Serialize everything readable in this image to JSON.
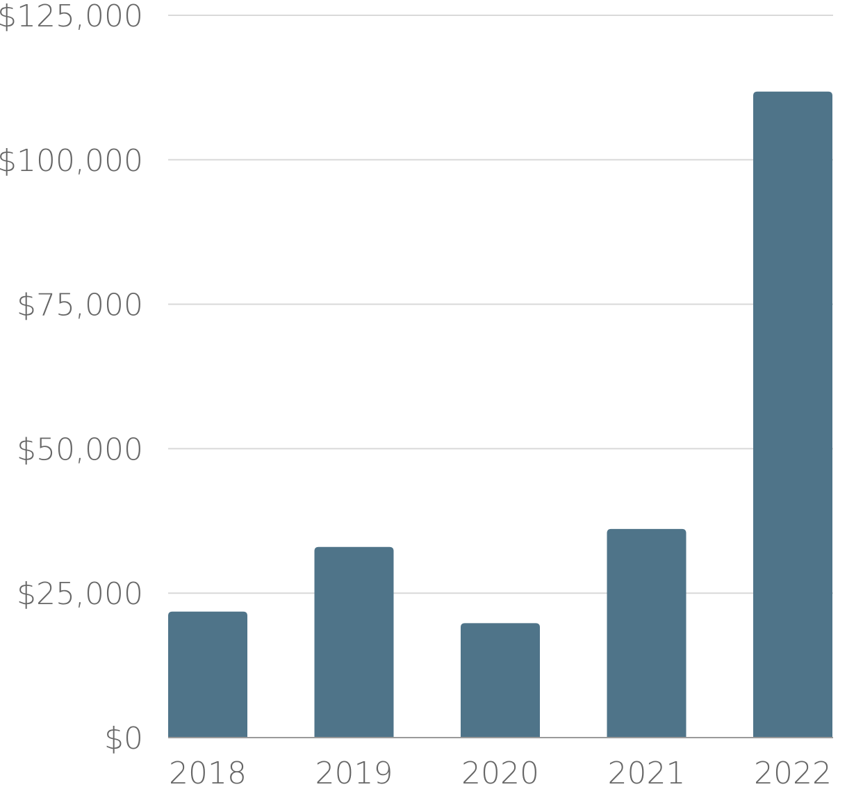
{
  "chart_data": {
    "type": "bar",
    "title": "",
    "xlabel": "",
    "ylabel": "",
    "categories": [
      "2018",
      "2019",
      "2020",
      "2021",
      "2022"
    ],
    "values": [
      21800,
      33000,
      19800,
      36100,
      111800
    ],
    "ylim": [
      0,
      125000
    ],
    "yticks": [
      0,
      25000,
      50000,
      75000,
      100000,
      125000
    ],
    "ytick_labels": [
      "$0",
      "$25,000",
      "$50,000",
      "$75,000",
      "$100,000",
      "$125,000"
    ],
    "grid": true,
    "legend": "none",
    "colors": {
      "bar": "#4f7489",
      "grid": "#d9d9d9",
      "axis": "#9a9a9a",
      "text": "#666666"
    }
  }
}
